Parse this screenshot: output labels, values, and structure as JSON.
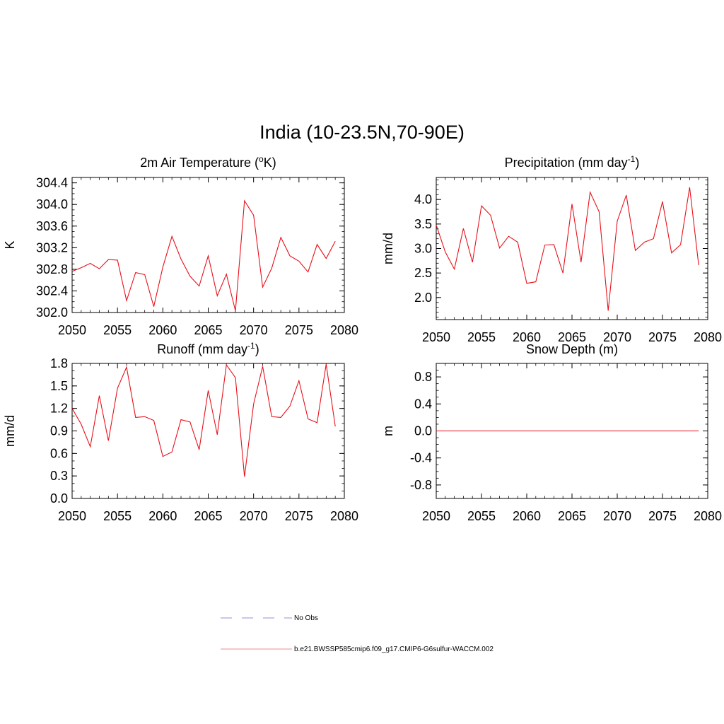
{
  "figure": {
    "title": "India (10-23.5N,70-90E)"
  },
  "colors": {
    "model": "#e8101a",
    "model_legend": "#f4a0a4",
    "obs_legend": "#a7a7dc",
    "axis": "#000000"
  },
  "legend": {
    "entries": [
      {
        "label": "No Obs",
        "style": "dashed",
        "color_key": "obs_legend"
      },
      {
        "label": "b.e21.BWSSP585cmip6.f09_g17.CMIP6-G6sulfur-WACCM.002",
        "style": "solid",
        "color_key": "model_legend"
      }
    ]
  },
  "chart_data": [
    {
      "id": "temp",
      "type": "line",
      "title_main": "2m Air Temperature (",
      "title_sup": "o",
      "title_tail": "K)",
      "xlabel": "",
      "ylabel": "K",
      "xlim": [
        2050,
        2080
      ],
      "ylim": [
        302.0,
        304.5
      ],
      "xticks": [
        2050,
        2055,
        2060,
        2065,
        2070,
        2075,
        2080
      ],
      "xtick_labels": [
        "2050",
        "2055",
        "2060",
        "2065",
        "2070",
        "2075",
        "2080"
      ],
      "yticks": [
        302.0,
        302.4,
        302.8,
        303.2,
        303.6,
        304.0,
        304.4
      ],
      "ytick_labels": [
        "302.0",
        "302.4",
        "302.8",
        "303.2",
        "303.6",
        "304.0",
        "304.4"
      ],
      "yminor": 0.1,
      "series": [
        {
          "x": [
            2050,
            2051,
            2052,
            2053,
            2054,
            2055,
            2056,
            2057,
            2058,
            2059,
            2060,
            2061,
            2062,
            2063,
            2064,
            2065,
            2066,
            2067,
            2068,
            2069,
            2070,
            2071,
            2072,
            2073,
            2074,
            2075,
            2076,
            2077,
            2078,
            2079
          ],
          "values": [
            302.76,
            302.83,
            302.91,
            302.81,
            302.98,
            302.97,
            302.22,
            302.74,
            302.7,
            302.11,
            302.84,
            303.41,
            302.99,
            302.67,
            302.49,
            303.05,
            302.31,
            302.71,
            302.03,
            304.07,
            303.8,
            302.47,
            302.82,
            303.39,
            303.05,
            302.95,
            302.75,
            303.26,
            303.0,
            303.32
          ]
        }
      ]
    },
    {
      "id": "precip",
      "type": "line",
      "title_main": "Precipitation (mm day",
      "title_sup": "-1",
      "title_tail": ")",
      "xlabel": "",
      "ylabel": "mm/d",
      "xlim": [
        2050,
        2080
      ],
      "ylim": [
        1.55,
        4.45
      ],
      "xticks": [
        2050,
        2055,
        2060,
        2065,
        2070,
        2075,
        2080
      ],
      "xtick_labels": [
        "2050",
        "2055",
        "2060",
        "2065",
        "2070",
        "2075",
        "2080"
      ],
      "yticks": [
        2.0,
        2.5,
        3.0,
        3.5,
        4.0
      ],
      "ytick_labels": [
        "2.0",
        "2.5",
        "3.0",
        "3.5",
        "4.0"
      ],
      "yminor": 0.1,
      "series": [
        {
          "x": [
            2050,
            2051,
            2052,
            2053,
            2054,
            2055,
            2056,
            2057,
            2058,
            2059,
            2060,
            2061,
            2062,
            2063,
            2064,
            2065,
            2066,
            2067,
            2068,
            2069,
            2070,
            2071,
            2072,
            2073,
            2074,
            2075,
            2076,
            2077,
            2078,
            2079
          ],
          "values": [
            3.48,
            2.93,
            2.58,
            3.41,
            2.72,
            3.87,
            3.68,
            3.01,
            3.25,
            3.13,
            2.29,
            2.32,
            3.07,
            3.08,
            2.5,
            3.91,
            2.72,
            4.15,
            3.75,
            1.73,
            3.56,
            4.09,
            2.96,
            3.13,
            3.2,
            3.96,
            2.91,
            3.08,
            4.25,
            2.66
          ]
        }
      ]
    },
    {
      "id": "runoff",
      "type": "line",
      "title_main": "Runoff (mm day",
      "title_sup": "-1",
      "title_tail": ")",
      "xlabel": "",
      "ylabel": "mm/d",
      "xlim": [
        2050,
        2080
      ],
      "ylim": [
        0.0,
        1.8
      ],
      "xticks": [
        2050,
        2055,
        2060,
        2065,
        2070,
        2075,
        2080
      ],
      "xtick_labels": [
        "2050",
        "2055",
        "2060",
        "2065",
        "2070",
        "2075",
        "2080"
      ],
      "yticks": [
        0.0,
        0.3,
        0.6,
        0.9,
        1.2,
        1.5,
        1.8
      ],
      "ytick_labels": [
        "0.0",
        "0.3",
        "0.6",
        "0.9",
        "1.2",
        "1.5",
        "1.8"
      ],
      "yminor": 0.1,
      "series": [
        {
          "x": [
            2050,
            2051,
            2052,
            2053,
            2054,
            2055,
            2056,
            2057,
            2058,
            2059,
            2060,
            2061,
            2062,
            2063,
            2064,
            2065,
            2066,
            2067,
            2068,
            2069,
            2070,
            2071,
            2072,
            2073,
            2074,
            2075,
            2076,
            2077,
            2078,
            2079
          ],
          "values": [
            1.2,
            0.99,
            0.69,
            1.37,
            0.77,
            1.47,
            1.75,
            1.08,
            1.09,
            1.04,
            0.56,
            0.62,
            1.05,
            1.02,
            0.65,
            1.44,
            0.85,
            1.78,
            1.61,
            0.29,
            1.26,
            1.76,
            1.09,
            1.08,
            1.23,
            1.57,
            1.06,
            1.01,
            1.79,
            0.96
          ]
        }
      ]
    },
    {
      "id": "snow",
      "type": "line",
      "title_main": "Snow Depth (m)",
      "title_sup": "",
      "title_tail": "",
      "xlabel": "",
      "ylabel": "m",
      "xlim": [
        2050,
        2080
      ],
      "ylim": [
        -1.0,
        1.0
      ],
      "xticks": [
        2050,
        2055,
        2060,
        2065,
        2070,
        2075,
        2080
      ],
      "xtick_labels": [
        "2050",
        "2055",
        "2060",
        "2065",
        "2070",
        "2075",
        "2080"
      ],
      "yticks": [
        -0.8,
        -0.4,
        0.0,
        0.4,
        0.8
      ],
      "ytick_labels": [
        "-0.8",
        "-0.4",
        "0.0",
        "0.4",
        "0.8"
      ],
      "yminor": 0.1,
      "series": [
        {
          "x": [
            2050,
            2051,
            2052,
            2053,
            2054,
            2055,
            2056,
            2057,
            2058,
            2059,
            2060,
            2061,
            2062,
            2063,
            2064,
            2065,
            2066,
            2067,
            2068,
            2069,
            2070,
            2071,
            2072,
            2073,
            2074,
            2075,
            2076,
            2077,
            2078,
            2079
          ],
          "values": [
            0,
            0,
            0,
            0,
            0,
            0,
            0,
            0,
            0,
            0,
            0,
            0,
            0,
            0,
            0,
            0,
            0,
            0,
            0,
            0,
            0,
            0,
            0,
            0,
            0,
            0,
            0,
            0,
            0,
            0
          ]
        }
      ]
    }
  ]
}
